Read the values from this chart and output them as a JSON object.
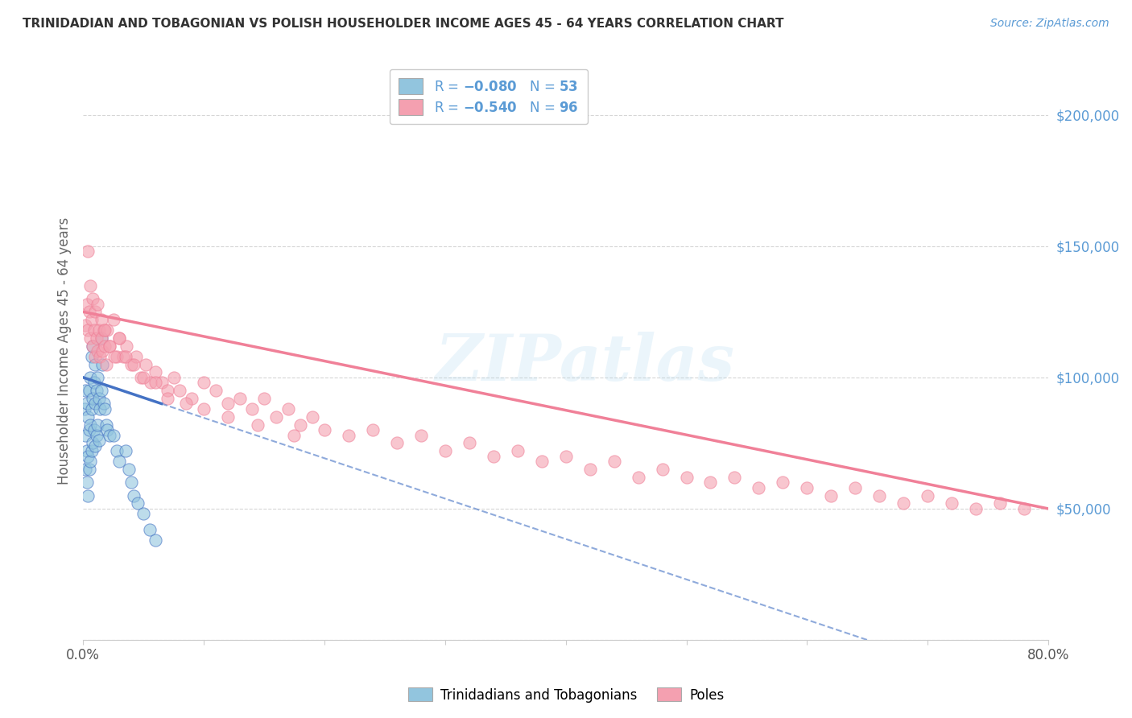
{
  "title": "TRINIDADIAN AND TOBAGONIAN VS POLISH HOUSEHOLDER INCOME AGES 45 - 64 YEARS CORRELATION CHART",
  "source": "Source: ZipAtlas.com",
  "ylabel": "Householder Income Ages 45 - 64 years",
  "xlim": [
    0.0,
    0.8
  ],
  "ylim": [
    0,
    220000
  ],
  "watermark": "ZIPatlas",
  "color_blue": "#92C5DE",
  "color_pink": "#F4A0B0",
  "color_blue_line": "#4472C4",
  "color_pink_line": "#F08098",
  "color_title": "#333333",
  "color_source": "#5B9BD5",
  "color_ylabel": "#666666",
  "color_ytick": "#5B9BD5",
  "color_xtick": "#555555",
  "color_grid": "#CCCCCC",
  "trin_x": [
    0.001,
    0.002,
    0.002,
    0.002,
    0.003,
    0.003,
    0.003,
    0.004,
    0.004,
    0.004,
    0.005,
    0.005,
    0.005,
    0.006,
    0.006,
    0.006,
    0.007,
    0.007,
    0.007,
    0.008,
    0.008,
    0.008,
    0.009,
    0.009,
    0.01,
    0.01,
    0.01,
    0.011,
    0.011,
    0.012,
    0.012,
    0.013,
    0.013,
    0.014,
    0.015,
    0.015,
    0.016,
    0.017,
    0.018,
    0.019,
    0.02,
    0.022,
    0.025,
    0.028,
    0.03,
    0.035,
    0.038,
    0.04,
    0.042,
    0.045,
    0.05,
    0.055,
    0.06
  ],
  "trin_y": [
    88000,
    95000,
    78000,
    65000,
    90000,
    72000,
    60000,
    85000,
    70000,
    55000,
    95000,
    80000,
    65000,
    100000,
    82000,
    68000,
    108000,
    88000,
    72000,
    112000,
    92000,
    75000,
    98000,
    80000,
    105000,
    90000,
    74000,
    95000,
    78000,
    100000,
    82000,
    92000,
    76000,
    88000,
    115000,
    95000,
    105000,
    90000,
    88000,
    82000,
    80000,
    78000,
    78000,
    72000,
    68000,
    72000,
    65000,
    60000,
    55000,
    52000,
    48000,
    42000,
    38000
  ],
  "pole_x": [
    0.002,
    0.003,
    0.004,
    0.005,
    0.006,
    0.007,
    0.008,
    0.009,
    0.01,
    0.011,
    0.012,
    0.013,
    0.014,
    0.015,
    0.016,
    0.017,
    0.018,
    0.019,
    0.02,
    0.022,
    0.025,
    0.028,
    0.03,
    0.033,
    0.036,
    0.04,
    0.044,
    0.048,
    0.052,
    0.056,
    0.06,
    0.065,
    0.07,
    0.075,
    0.08,
    0.09,
    0.1,
    0.11,
    0.12,
    0.13,
    0.14,
    0.15,
    0.16,
    0.17,
    0.18,
    0.19,
    0.2,
    0.22,
    0.24,
    0.26,
    0.28,
    0.3,
    0.32,
    0.34,
    0.36,
    0.38,
    0.4,
    0.42,
    0.44,
    0.46,
    0.48,
    0.5,
    0.52,
    0.54,
    0.56,
    0.58,
    0.6,
    0.62,
    0.64,
    0.66,
    0.68,
    0.7,
    0.72,
    0.74,
    0.76,
    0.78,
    0.004,
    0.006,
    0.008,
    0.01,
    0.012,
    0.015,
    0.018,
    0.022,
    0.026,
    0.03,
    0.035,
    0.042,
    0.05,
    0.06,
    0.07,
    0.085,
    0.1,
    0.12,
    0.145,
    0.175
  ],
  "pole_y": [
    120000,
    128000,
    118000,
    125000,
    115000,
    122000,
    112000,
    118000,
    108000,
    115000,
    110000,
    118000,
    108000,
    115000,
    110000,
    118000,
    112000,
    105000,
    118000,
    112000,
    122000,
    108000,
    115000,
    108000,
    112000,
    105000,
    108000,
    100000,
    105000,
    98000,
    102000,
    98000,
    95000,
    100000,
    95000,
    92000,
    98000,
    95000,
    90000,
    92000,
    88000,
    92000,
    85000,
    88000,
    82000,
    85000,
    80000,
    78000,
    80000,
    75000,
    78000,
    72000,
    75000,
    70000,
    72000,
    68000,
    70000,
    65000,
    68000,
    62000,
    65000,
    62000,
    60000,
    62000,
    58000,
    60000,
    58000,
    55000,
    58000,
    55000,
    52000,
    55000,
    52000,
    50000,
    52000,
    50000,
    148000,
    135000,
    130000,
    125000,
    128000,
    122000,
    118000,
    112000,
    108000,
    115000,
    108000,
    105000,
    100000,
    98000,
    92000,
    90000,
    88000,
    85000,
    82000,
    78000
  ],
  "trin_line_x": [
    0.0,
    0.4
  ],
  "trin_line_solid_end": 0.065,
  "pole_line_x": [
    0.0,
    0.8
  ],
  "dash_line_x": [
    0.4,
    0.8
  ]
}
